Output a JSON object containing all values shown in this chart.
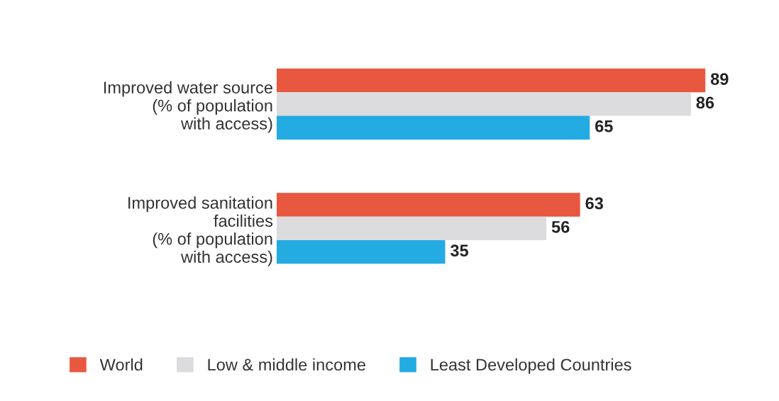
{
  "chart_data": {
    "type": "bar",
    "orientation": "horizontal",
    "categories": [
      "Improved water source\n(% of population\nwith access)",
      "Improved sanitation\nfacilities\n(% of population\nwith access)"
    ],
    "series": [
      {
        "name": "World",
        "color": "#e8573f",
        "values": [
          89,
          63
        ]
      },
      {
        "name": "Low & middle income",
        "color": "#dcdcde",
        "values": [
          86,
          56
        ]
      },
      {
        "name": "Least Developed Countries",
        "color": "#23abe2",
        "values": [
          65,
          35
        ]
      }
    ],
    "data_labels": true,
    "tick_labels": "y",
    "legend": "bottom"
  }
}
